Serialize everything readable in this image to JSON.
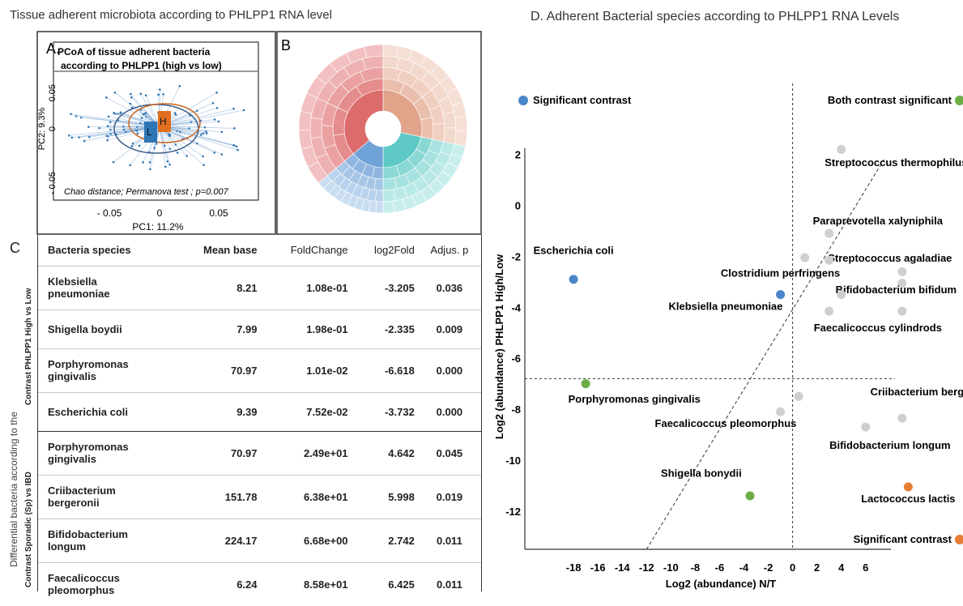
{
  "titles": {
    "left": "Tissue adherent microbiota according to PHLPP1 RNA level",
    "right": "D. Adherent Bacterial species according to PHLPP1 RNA Levels"
  },
  "panel_a": {
    "letter": "A.",
    "box_title_1": "PCoA of tissue adherent bacteria",
    "box_title_2": "according to PHLPP1 (high vs low)",
    "ylabel": "PC2: 9.3%",
    "xlabel": "PC1: 11.2%",
    "yticks": [
      "0.05",
      "0",
      "- 0.05"
    ],
    "xticks": [
      "- 0.05",
      "0",
      "0.05"
    ],
    "group_low": "L",
    "group_high": "H",
    "note": "Chao  distance;  Permanova test ; p=0.007",
    "color_low": "#2e75b6",
    "color_high": "#e06e1f"
  },
  "panel_b": {
    "letter": "B"
  },
  "panel_c": {
    "letter": "C",
    "side_label": "Differential bacteria according to the",
    "group1_label": "Contrast PHLPP1 High  vs Low",
    "group2_label": "Contrast Sporadic (Sp)  vs IBD",
    "headers": [
      "Bacteria species",
      "Mean base",
      "FoldChange",
      "log2Fold",
      "Adjus. p"
    ],
    "rows": [
      {
        "species1": "Klebsiella",
        "species2": "pneumoniae",
        "mean": "8.21",
        "fc": "1.08e-01",
        "l2": "-3.205",
        "p": "0.036"
      },
      {
        "species1": "Shigella boydii",
        "species2": "",
        "mean": "7.99",
        "fc": "1.98e-01",
        "l2": "-2.335",
        "p": "0.009"
      },
      {
        "species1": "Porphyromonas",
        "species2": "gingivalis",
        "mean": "70.97",
        "fc": "1.01e-02",
        "l2": "-6.618",
        "p": "0.000"
      },
      {
        "species1": "Escherichia coli",
        "species2": "",
        "mean": "9.39",
        "fc": "7.52e-02",
        "l2": "-3.732",
        "p": "0.000"
      },
      {
        "species1": "Porphyromonas",
        "species2": "gingivalis",
        "mean": "70.97",
        "fc": "2.49e+01",
        "l2": "4.642",
        "p": "0.045"
      },
      {
        "species1": "Criibacterium",
        "species2": "bergeronii",
        "mean": "151.78",
        "fc": "6.38e+01",
        "l2": "5.998",
        "p": "0.019"
      },
      {
        "species1": "Bifidobacterium",
        "species2": "longum",
        "mean": "224.17",
        "fc": "6.68e+00",
        "l2": "2.742",
        "p": "0.011"
      },
      {
        "species1": "Faecalicoccus",
        "species2": "pleomorphus",
        "mean": "6.24",
        "fc": "8.58e+01",
        "l2": "6.425",
        "p": "0.011"
      }
    ]
  },
  "chart_data": {
    "type": "scatter",
    "title": "D. Adherent Bacterial species according to PHLPP1 RNA Levels",
    "xlabel": "Log2 (abundance) N/T",
    "ylabel": "Log2 (abundance) PHLPP1 High/Low",
    "x_tick_labels": [
      "-18",
      "-16",
      "-14",
      "-12",
      "-10",
      "-8",
      "-6",
      "-4",
      "-2",
      "0",
      "2",
      "4",
      "6"
    ],
    "x_ticks": [
      -18,
      -16,
      -14,
      -12,
      -10,
      -8,
      -6,
      -4,
      -2,
      0,
      2,
      4,
      6
    ],
    "y_tick_labels": [
      "2",
      "0",
      "-2",
      "-4",
      "-6",
      "-8",
      "-10",
      "-12"
    ],
    "y_ticks": [
      2,
      0,
      -2,
      -4,
      -6,
      -8,
      -10,
      -12
    ],
    "xlim": [
      -22,
      14
    ],
    "ylim": [
      -13.5,
      3.2
    ],
    "legend": [
      {
        "label": "Significant contrast",
        "color": "#4a86c8"
      },
      {
        "label": "Both contrast significant",
        "color": "#6aae45"
      },
      {
        "label": "Significant contrast",
        "color": "#e57d32"
      }
    ],
    "colors": {
      "blue": "#4a86c8",
      "green": "#6aae45",
      "orange": "#e57d32",
      "grey": "#cfcfcf"
    },
    "points": [
      {
        "x": -18,
        "y": -2.9,
        "color": "blue",
        "label": "Escherichia coli",
        "lx": -18,
        "ly": -1.9
      },
      {
        "x": -1,
        "y": -3.5,
        "color": "blue",
        "label": "Clostridium perfringens",
        "lx": -1,
        "ly": -2.8
      },
      {
        "x": -17,
        "y": -7.0,
        "color": "green",
        "label": "Porphyromonas gingivalis",
        "lx": -13,
        "ly": -7.75
      },
      {
        "x": -3.5,
        "y": -11.4,
        "color": "green",
        "label": "Shigella bonydii",
        "lx": -7.5,
        "ly": -10.65
      },
      {
        "x": 9.5,
        "y": -11.05,
        "color": "orange",
        "label": "Lactococcus lactis",
        "lx": 9.5,
        "ly": -11.65
      },
      {
        "x": 4,
        "y": 2.2,
        "color": "grey",
        "label": "Streptococcus thermophilus",
        "lx": 8.5,
        "ly": 1.55
      },
      {
        "x": 3,
        "y": -1.1,
        "color": "grey",
        "label": "Paraprevotella xalyniphila",
        "lx": 7,
        "ly": -0.75
      },
      {
        "x": 1,
        "y": -2.05,
        "color": "grey",
        "label": "Streptococcus agaladiae",
        "lx": 8,
        "ly": -2.2
      },
      {
        "x": 3,
        "y": -2.15,
        "color": "grey",
        "label": "",
        "lx": 0,
        "ly": 0
      },
      {
        "x": 9,
        "y": -2.6,
        "color": "grey",
        "label": "",
        "lx": 0,
        "ly": 0
      },
      {
        "x": 9,
        "y": -3.05,
        "color": "grey",
        "label": "Bifidobacterium bifidum",
        "lx": 8.5,
        "ly": -3.45
      },
      {
        "x": 4,
        "y": -3.5,
        "color": "grey",
        "label": "",
        "lx": 0,
        "ly": 0
      },
      {
        "x": 3,
        "y": -4.15,
        "color": "grey",
        "label": "Klebsiella pneumoniae",
        "lx": -5.5,
        "ly": -4.1
      },
      {
        "x": 9,
        "y": -4.15,
        "color": "grey",
        "label": "Faecalicoccus cylindrods",
        "lx": 7,
        "ly": -4.95
      },
      {
        "x": 0.5,
        "y": -7.5,
        "color": "grey",
        "label": "Criibacterium bergonii",
        "lx": 11,
        "ly": -7.45
      },
      {
        "x": -1,
        "y": -8.1,
        "color": "grey",
        "label": "Faecalicoccus pleomorphus",
        "lx": -5.5,
        "ly": -8.7
      },
      {
        "x": 9,
        "y": -8.35,
        "color": "grey",
        "label": "",
        "lx": 0,
        "ly": 0
      },
      {
        "x": 6,
        "y": -8.7,
        "color": "grey",
        "label": "Bifidobacterium longum",
        "lx": 8,
        "ly": -9.55
      }
    ],
    "vline_x": 0,
    "hline_y": -6.8,
    "diagonal": [
      [
        -12,
        -13.5
      ],
      [
        7.5,
        1.8
      ]
    ]
  }
}
